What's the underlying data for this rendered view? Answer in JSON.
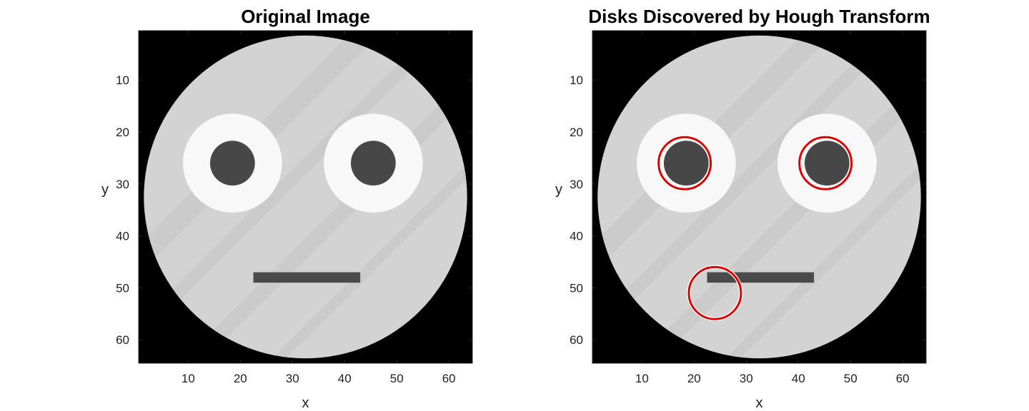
{
  "panels": [
    {
      "title": "Original Image",
      "xlabel": "x",
      "ylabel": "y",
      "show_detections": false
    },
    {
      "title": "Disks Discovered by Hough Transform",
      "xlabel": "x",
      "ylabel": "y",
      "show_detections": true
    }
  ],
  "axes": {
    "xlim": [
      0.5,
      64.5
    ],
    "ylim": [
      0.5,
      64.5
    ],
    "x_ticks": [
      "10",
      "20",
      "30",
      "40",
      "50",
      "60"
    ],
    "y_ticks": [
      "10",
      "20",
      "30",
      "40",
      "50",
      "60"
    ],
    "y_reversed": true
  },
  "image": {
    "background_color": "#000000",
    "face": {
      "cx": 32.5,
      "cy": 32.5,
      "r": 31,
      "color": "#d3d3d3"
    },
    "stripe_color": "#c4c4c4",
    "eyes": [
      {
        "cx": 18.5,
        "cy": 26,
        "white_r": 9.5,
        "pupil_r": 4.3
      },
      {
        "cx": 45.5,
        "cy": 26,
        "white_r": 9.5,
        "pupil_r": 4.3
      }
    ],
    "eye_white_color": "#f8f8f8",
    "pupil_color": "#474747",
    "mouth": {
      "x1": 22.5,
      "x2": 43,
      "y1": 47,
      "y2": 49,
      "color": "#4a4a4a"
    }
  },
  "detections": {
    "color": "#e00000",
    "circles": [
      {
        "cx": 18.2,
        "cy": 26,
        "r": 5
      },
      {
        "cx": 45.2,
        "cy": 26,
        "r": 5
      },
      {
        "cx": 24,
        "cy": 51,
        "r": 5
      }
    ]
  }
}
